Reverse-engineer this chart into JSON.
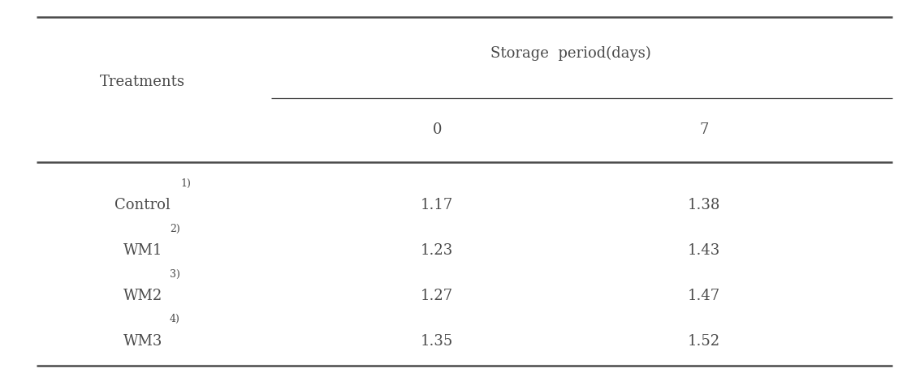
{
  "title": "Storage  period(days)",
  "col_header_label": "Treatments",
  "col_days": [
    "0",
    "7"
  ],
  "rows": [
    {
      "label": "Control",
      "superscript": "1)",
      "values": [
        "1.17",
        "1.38"
      ]
    },
    {
      "label": "WM1",
      "superscript": "2)",
      "values": [
        "1.23",
        "1.43"
      ]
    },
    {
      "label": "WM2",
      "superscript": "3)",
      "values": [
        "1.27",
        "1.47"
      ]
    },
    {
      "label": "WM3",
      "superscript": "4)",
      "values": [
        "1.35",
        "1.52"
      ]
    }
  ],
  "bg_color": "#ffffff",
  "text_color": "#4a4a4a",
  "font_size": 13,
  "font_size_super": 9
}
